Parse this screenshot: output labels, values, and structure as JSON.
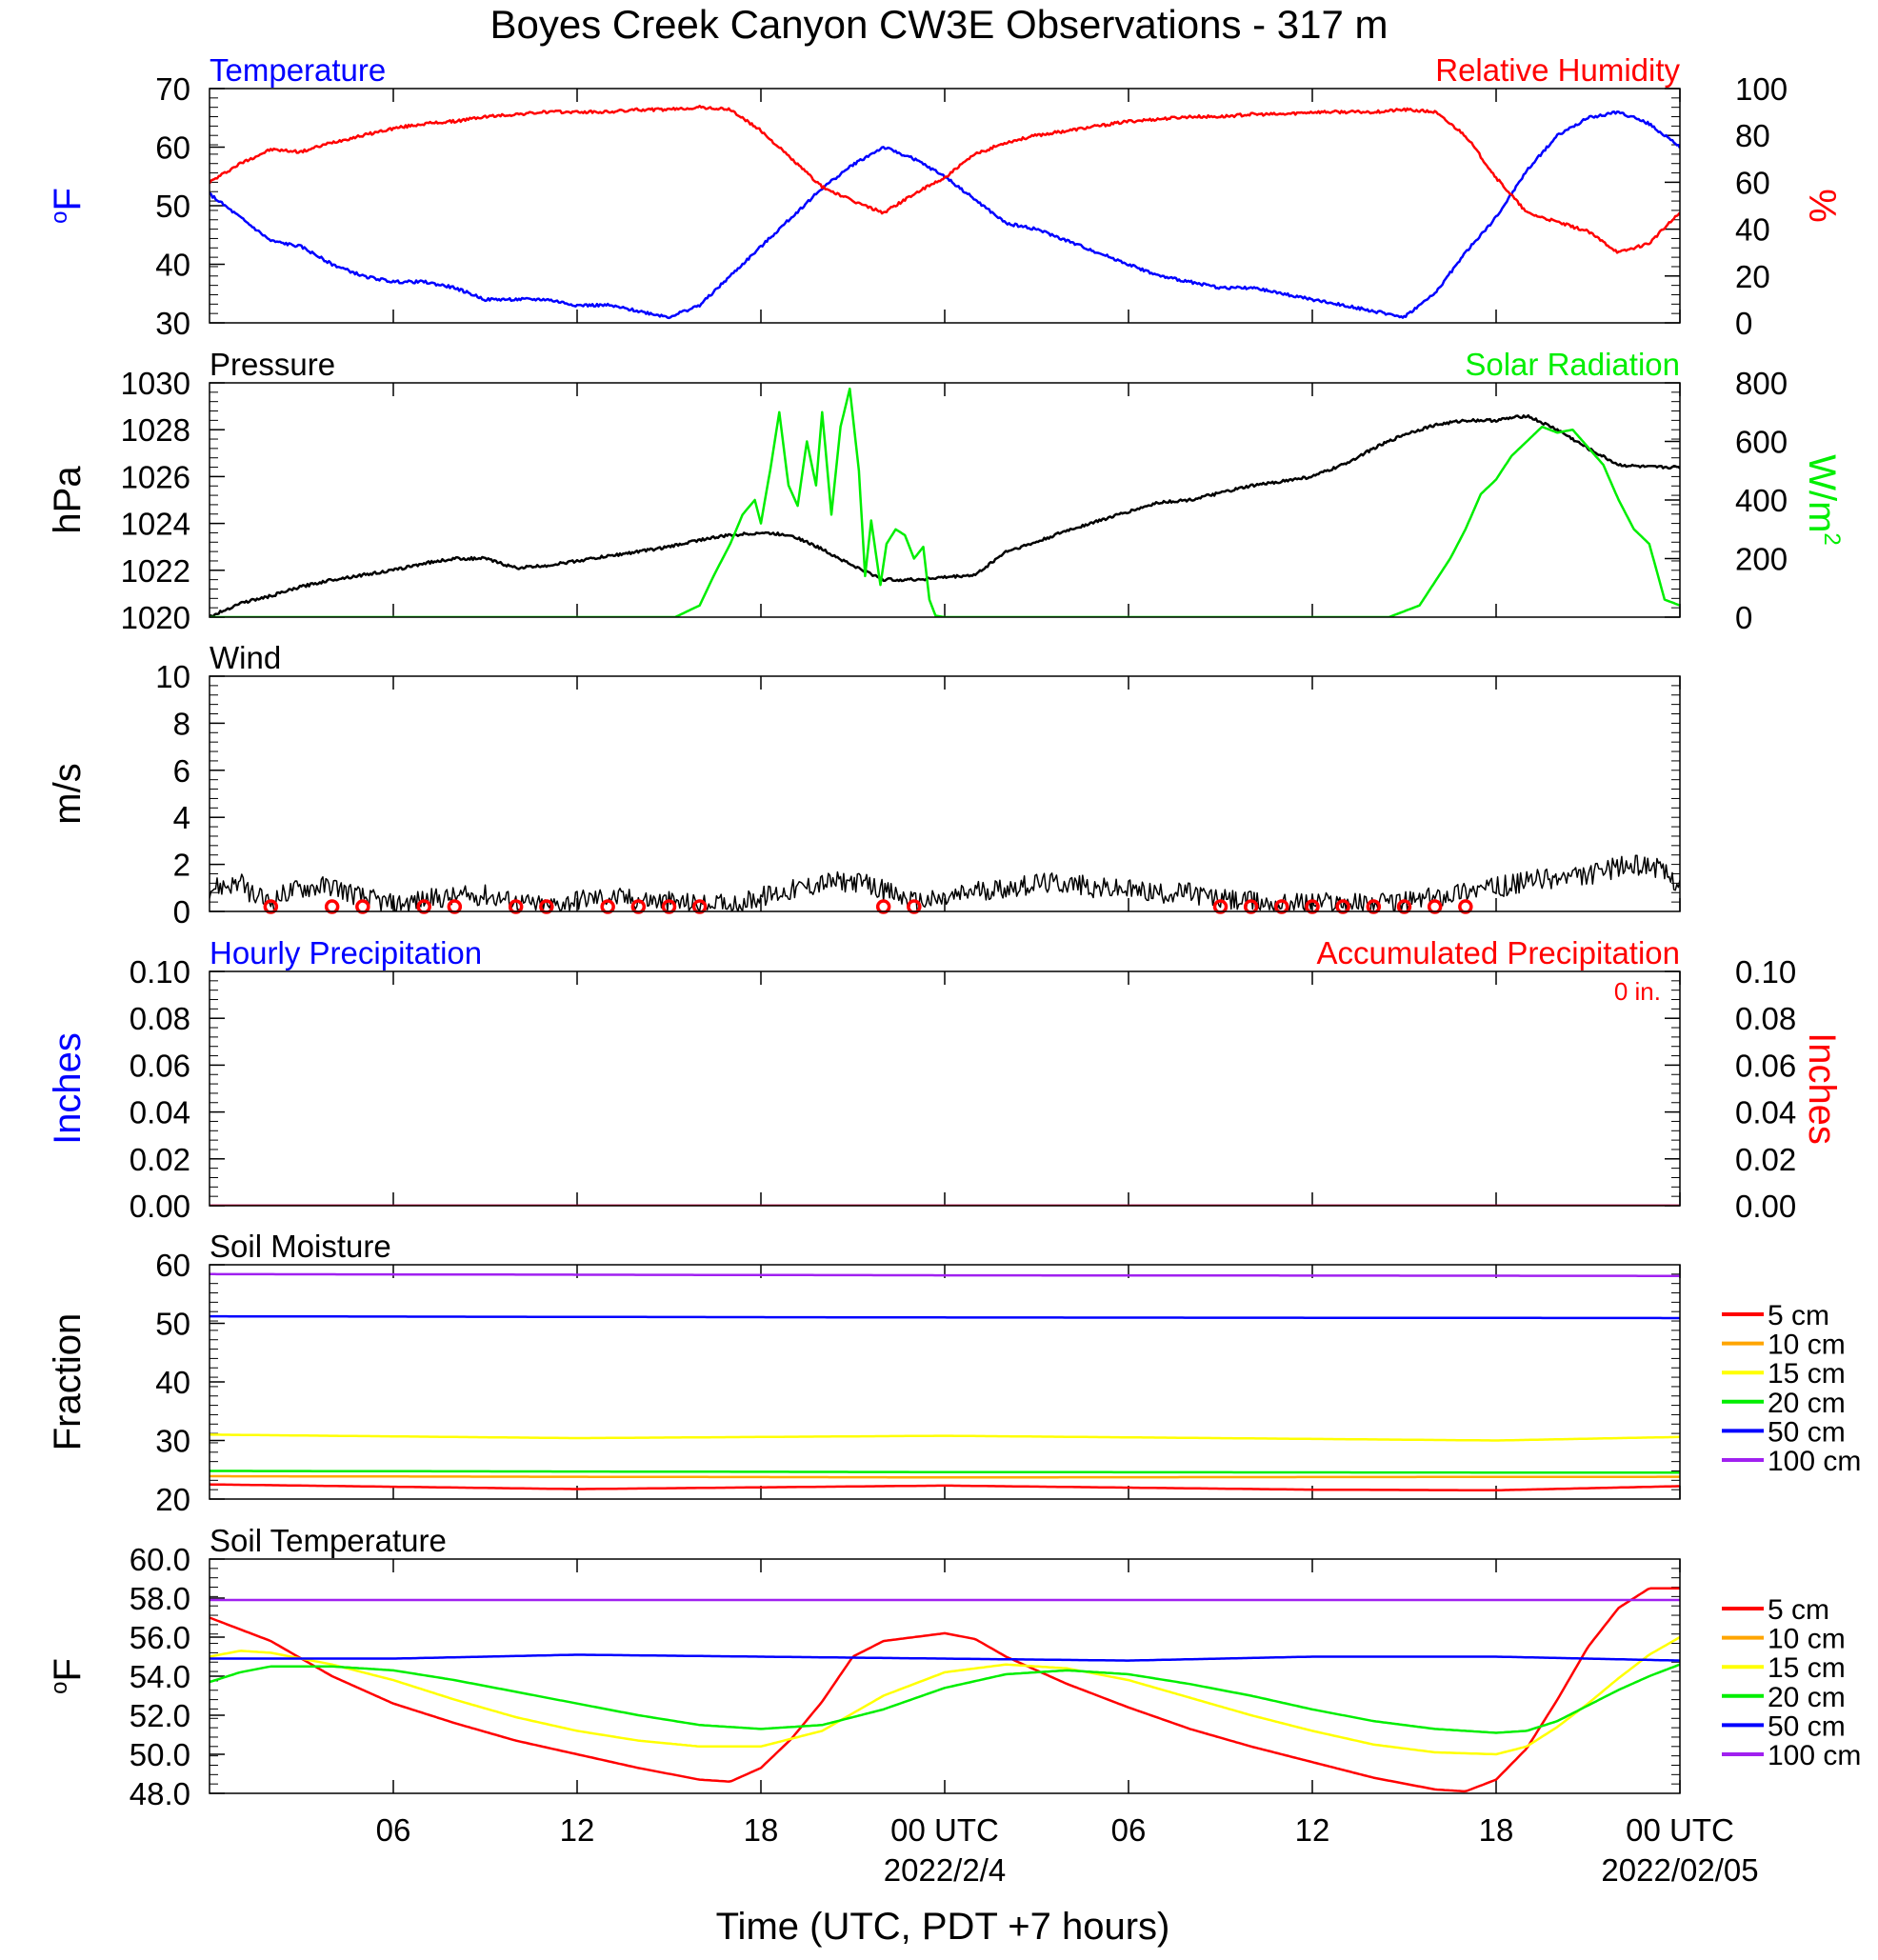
{
  "title": "Boyes Creek Canyon CW3E Observations - 317 m",
  "xaxis": {
    "title": "Time (UTC, PDT +7 hours)",
    "range_hours": [
      0,
      48
    ],
    "ticks": [
      {
        "hour": 6,
        "label": "06",
        "date": ""
      },
      {
        "hour": 12,
        "label": "12",
        "date": ""
      },
      {
        "hour": 18,
        "label": "18",
        "date": ""
      },
      {
        "hour": 24,
        "label": "00 UTC",
        "date": "2022/2/4"
      },
      {
        "hour": 30,
        "label": "06",
        "date": ""
      },
      {
        "hour": 36,
        "label": "12",
        "date": ""
      },
      {
        "hour": 42,
        "label": "18",
        "date": ""
      },
      {
        "hour": 48,
        "label": "00 UTC",
        "date": "2022/02/05"
      }
    ]
  },
  "colors": {
    "blue": "#0000ff",
    "red": "#ff0000",
    "black": "#000000",
    "green": "#00ee00",
    "orange": "#ffa500",
    "yellow": "#ffff00",
    "purple": "#a020f0"
  },
  "chart_data": [
    {
      "id": "temp_rh",
      "type": "line",
      "title_left": "Temperature",
      "title_right": "Relative Humidity",
      "ylabel_left": "°F",
      "ylabel_right": "%",
      "ylim_left": [
        30,
        70
      ],
      "yticks_left": [
        "30",
        "40",
        "50",
        "60",
        "70"
      ],
      "ylim_right": [
        0,
        100
      ],
      "yticks_right": [
        "0",
        "20",
        "40",
        "60",
        "80",
        "100"
      ],
      "series": [
        {
          "name": "Temperature",
          "axis": "left",
          "color": "#0000ff",
          "x": [
            0,
            1,
            2,
            3,
            4,
            5,
            6,
            7,
            8,
            9,
            10,
            11,
            12,
            13,
            14,
            15,
            16,
            17,
            18,
            19,
            20,
            21,
            22,
            23,
            24,
            25,
            26,
            27,
            28,
            29,
            30,
            31,
            32,
            33,
            34,
            35,
            36,
            37,
            38,
            39,
            40,
            41,
            42,
            43,
            44,
            45,
            46,
            47,
            48
          ],
          "y": [
            52,
            48,
            44,
            43,
            40,
            38,
            37,
            37,
            36,
            34,
            34,
            34,
            33,
            33,
            32,
            31,
            33,
            38,
            43,
            48,
            53,
            57,
            60,
            58,
            55,
            51,
            47,
            46,
            44,
            42,
            40,
            38,
            37,
            36,
            36,
            35,
            34,
            33,
            32,
            31,
            35,
            42,
            48,
            56,
            62,
            65,
            66,
            64,
            60
          ]
        },
        {
          "name": "Relative Humidity",
          "axis": "right",
          "color": "#ff0000",
          "x": [
            0,
            1,
            2,
            3,
            4,
            5,
            6,
            7,
            8,
            9,
            10,
            11,
            12,
            13,
            14,
            15,
            16,
            17,
            18,
            19,
            20,
            21,
            22,
            23,
            24,
            25,
            26,
            27,
            28,
            29,
            30,
            31,
            32,
            33,
            34,
            35,
            36,
            37,
            38,
            39,
            40,
            41,
            42,
            43,
            44,
            45,
            46,
            47,
            48
          ],
          "y": [
            60,
            68,
            74,
            73,
            77,
            80,
            83,
            85,
            86,
            88,
            89,
            90,
            90,
            90,
            91,
            91,
            92,
            91,
            82,
            70,
            58,
            52,
            47,
            55,
            62,
            72,
            77,
            80,
            82,
            84,
            86,
            87,
            88,
            88,
            89,
            89,
            90,
            90,
            90,
            91,
            90,
            80,
            62,
            47,
            43,
            39,
            30,
            34,
            47
          ]
        }
      ]
    },
    {
      "id": "pressure_solar",
      "type": "line",
      "title_left": "Pressure",
      "title_right": "Solar Radiation",
      "ylabel_left": "hPa",
      "ylabel_right": "W/m2",
      "ylim_left": [
        1020,
        1030
      ],
      "yticks_left": [
        "1020",
        "1022",
        "1024",
        "1026",
        "1028",
        "1030"
      ],
      "ylim_right": [
        0,
        800
      ],
      "yticks_right": [
        "0",
        "200",
        "400",
        "600",
        "800"
      ],
      "series": [
        {
          "name": "Pressure",
          "axis": "left",
          "color": "#000000",
          "x": [
            0,
            1,
            2,
            3,
            4,
            5,
            6,
            7,
            8,
            9,
            10,
            11,
            12,
            13,
            14,
            15,
            16,
            17,
            18,
            19,
            20,
            21,
            22,
            23,
            24,
            25,
            26,
            27,
            28,
            29,
            30,
            31,
            32,
            33,
            34,
            35,
            36,
            37,
            38,
            39,
            40,
            41,
            42,
            43,
            44,
            45,
            46,
            47,
            48
          ],
          "y": [
            1020.0,
            1020.6,
            1020.9,
            1021.3,
            1021.6,
            1021.8,
            1022.0,
            1022.3,
            1022.5,
            1022.5,
            1022.1,
            1022.2,
            1022.4,
            1022.6,
            1022.8,
            1023.0,
            1023.3,
            1023.5,
            1023.6,
            1023.5,
            1022.9,
            1022.2,
            1021.6,
            1021.6,
            1021.7,
            1021.8,
            1022.8,
            1023.2,
            1023.7,
            1024.1,
            1024.5,
            1024.9,
            1025.0,
            1025.3,
            1025.6,
            1025.8,
            1026.0,
            1026.5,
            1027.2,
            1027.8,
            1028.2,
            1028.4,
            1028.4,
            1028.6,
            1028.0,
            1027.2,
            1026.5,
            1026.4,
            1026.4
          ]
        },
        {
          "name": "Solar Radiation",
          "axis": "right",
          "color": "#00ee00",
          "x": [
            0,
            0.4,
            14,
            15.2,
            16,
            16.5,
            17,
            17.4,
            17.8,
            18,
            18.3,
            18.6,
            18.9,
            19.2,
            19.5,
            19.8,
            20,
            20.3,
            20.6,
            20.9,
            21.2,
            21.4,
            21.6,
            21.9,
            22.1,
            22.4,
            22.7,
            23,
            23.3,
            23.5,
            23.7,
            24,
            25,
            26,
            38.5,
            39.5,
            40.5,
            41,
            41.5,
            42,
            42.5,
            43,
            43.5,
            44,
            44.5,
            45,
            45.5,
            46,
            46.5,
            47,
            47.5,
            48
          ],
          "y": [
            0,
            0,
            0,
            0,
            40,
            150,
            250,
            350,
            400,
            320,
            500,
            700,
            450,
            380,
            600,
            450,
            700,
            350,
            650,
            780,
            500,
            140,
            330,
            110,
            250,
            300,
            280,
            200,
            240,
            60,
            5,
            0,
            0,
            0,
            0,
            40,
            200,
            300,
            420,
            470,
            550,
            600,
            650,
            630,
            640,
            580,
            520,
            400,
            300,
            250,
            60,
            40
          ]
        }
      ]
    },
    {
      "id": "wind",
      "type": "line",
      "title_left": "Wind",
      "ylabel_left": "m/s",
      "ylim_left": [
        0,
        10
      ],
      "yticks_left": [
        "0",
        "2",
        "4",
        "6",
        "8",
        "10"
      ],
      "series": [
        {
          "name": "Wind",
          "axis": "left",
          "color": "#000000",
          "x": [
            0,
            1,
            1.5,
            2,
            2.5,
            3,
            4,
            5,
            6,
            7,
            8,
            9,
            10,
            11,
            12,
            13,
            14,
            15,
            16,
            17,
            18,
            19,
            20,
            21,
            22,
            23,
            24,
            25,
            26,
            27,
            28,
            29,
            30,
            31,
            32,
            33,
            34,
            35,
            36,
            37,
            38,
            39,
            40,
            41,
            42,
            43,
            44,
            45,
            46,
            47,
            48
          ],
          "y": [
            1.0,
            1.2,
            0.6,
            0.4,
            0.8,
            1.0,
            1.1,
            0.6,
            0.3,
            0.5,
            0.6,
            0.7,
            0.4,
            0.2,
            0.5,
            0.6,
            0.5,
            0.4,
            0.3,
            0.3,
            0.6,
            0.9,
            1.2,
            1.3,
            0.9,
            0.4,
            0.5,
            0.9,
            1.0,
            1.2,
            1.2,
            1.0,
            0.9,
            0.8,
            0.8,
            0.5,
            0.4,
            0.3,
            0.4,
            0.4,
            0.3,
            0.4,
            0.6,
            0.9,
            1.0,
            1.3,
            1.4,
            1.5,
            1.9,
            2.0,
            1.2
          ]
        }
      ],
      "calm_hours": [
        2,
        4,
        5,
        7,
        8,
        10,
        11,
        13,
        14,
        15,
        16,
        22,
        23,
        33,
        34,
        35,
        36,
        37,
        38,
        39,
        40,
        41
      ]
    },
    {
      "id": "precip",
      "type": "line",
      "title_left": "Hourly Precipitation",
      "title_right": "Accumulated Precipitation",
      "annotation": "0 in.",
      "ylabel_left": "Inches",
      "ylabel_right": "Inches",
      "ylim_left": [
        0,
        0.1
      ],
      "yticks_left": [
        "0.00",
        "0.02",
        "0.04",
        "0.06",
        "0.08",
        "0.10"
      ],
      "ylim_right": [
        0,
        0.1
      ],
      "yticks_right": [
        "0.00",
        "0.02",
        "0.04",
        "0.06",
        "0.08",
        "0.10"
      ],
      "series": [
        {
          "name": "Hourly Precipitation",
          "axis": "left",
          "color": "#0000ff",
          "x": [
            0,
            48
          ],
          "y": [
            0,
            0
          ]
        },
        {
          "name": "Accumulated Precipitation",
          "axis": "left",
          "color": "#ff0000",
          "x": [
            0,
            48
          ],
          "y": [
            0,
            0
          ]
        }
      ]
    },
    {
      "id": "soil_moisture",
      "type": "line",
      "title_left": "Soil Moisture",
      "ylabel_left": "Fraction",
      "ylim_left": [
        20,
        60
      ],
      "yticks_left": [
        "20",
        "30",
        "40",
        "50",
        "60"
      ],
      "legend": "right",
      "series": [
        {
          "name": "5 cm",
          "axis": "left",
          "color": "#ff0000",
          "x": [
            0,
            12,
            24,
            36,
            42,
            48
          ],
          "y": [
            22.5,
            21.7,
            22.3,
            21.6,
            21.5,
            22.2
          ]
        },
        {
          "name": "10 cm",
          "axis": "left",
          "color": "#ffa500",
          "x": [
            0,
            24,
            48
          ],
          "y": [
            23.9,
            23.7,
            23.8
          ]
        },
        {
          "name": "15 cm",
          "axis": "left",
          "color": "#ffff00",
          "x": [
            0,
            12,
            24,
            42,
            48
          ],
          "y": [
            31.0,
            30.4,
            30.8,
            30.0,
            30.6
          ]
        },
        {
          "name": "20 cm",
          "axis": "left",
          "color": "#00ee00",
          "x": [
            0,
            24,
            48
          ],
          "y": [
            24.8,
            24.6,
            24.5
          ]
        },
        {
          "name": "50 cm",
          "axis": "left",
          "color": "#0000ff",
          "x": [
            0,
            24,
            48
          ],
          "y": [
            51.2,
            51.0,
            50.9
          ]
        },
        {
          "name": "100 cm",
          "axis": "left",
          "color": "#a020f0",
          "x": [
            0,
            24,
            48
          ],
          "y": [
            58.4,
            58.2,
            58.1
          ]
        }
      ]
    },
    {
      "id": "soil_temp",
      "type": "line",
      "title_left": "Soil Temperature",
      "ylabel_left": "°F",
      "ylim_left": [
        48,
        60
      ],
      "yticks_left": [
        "48.0",
        "50.0",
        "52.0",
        "54.0",
        "56.0",
        "58.0",
        "60.0"
      ],
      "legend": "right",
      "series": [
        {
          "name": "5 cm",
          "axis": "left",
          "color": "#ff0000",
          "x": [
            0,
            2,
            4,
            6,
            8,
            10,
            12,
            14,
            16,
            17,
            18,
            19,
            20,
            21,
            22,
            23,
            24,
            25,
            26,
            28,
            30,
            32,
            34,
            36,
            38,
            40,
            41,
            42,
            43,
            44,
            45,
            46,
            47,
            48
          ],
          "y": [
            57.0,
            55.8,
            54.0,
            52.6,
            51.6,
            50.7,
            50.0,
            49.3,
            48.7,
            48.6,
            49.3,
            50.8,
            52.7,
            55.0,
            55.8,
            56.0,
            56.2,
            55.9,
            55.0,
            53.6,
            52.4,
            51.3,
            50.4,
            49.6,
            48.8,
            48.2,
            48.1,
            48.7,
            50.3,
            52.8,
            55.5,
            57.5,
            58.5,
            58.5
          ]
        },
        {
          "name": "10 cm",
          "axis": "left",
          "color": "#ffa500",
          "x": [],
          "y": []
        },
        {
          "name": "15 cm",
          "axis": "left",
          "color": "#ffff00",
          "x": [
            0,
            1,
            2,
            4,
            6,
            8,
            10,
            12,
            14,
            16,
            18,
            20,
            22,
            24,
            26,
            28,
            30,
            32,
            34,
            36,
            38,
            40,
            42,
            43,
            44,
            45,
            46,
            47,
            48
          ],
          "y": [
            55.0,
            55.3,
            55.2,
            54.6,
            53.8,
            52.8,
            51.9,
            51.2,
            50.7,
            50.4,
            50.4,
            51.2,
            53.0,
            54.2,
            54.6,
            54.4,
            53.8,
            52.9,
            52.0,
            51.2,
            50.5,
            50.1,
            50.0,
            50.4,
            51.4,
            52.6,
            53.9,
            55.1,
            56.0
          ]
        },
        {
          "name": "20 cm",
          "axis": "left",
          "color": "#00ee00",
          "x": [
            0,
            1,
            2,
            4,
            6,
            8,
            10,
            12,
            14,
            16,
            18,
            20,
            22,
            24,
            26,
            28,
            30,
            32,
            34,
            36,
            38,
            40,
            42,
            43,
            44,
            45,
            46,
            47,
            48
          ],
          "y": [
            53.7,
            54.2,
            54.5,
            54.5,
            54.3,
            53.8,
            53.2,
            52.6,
            52.0,
            51.5,
            51.3,
            51.5,
            52.3,
            53.4,
            54.1,
            54.3,
            54.1,
            53.6,
            53.0,
            52.3,
            51.7,
            51.3,
            51.1,
            51.2,
            51.7,
            52.5,
            53.3,
            54.0,
            54.6
          ]
        },
        {
          "name": "50 cm",
          "axis": "left",
          "color": "#0000ff",
          "x": [
            0,
            6,
            12,
            18,
            24,
            30,
            36,
            42,
            48
          ],
          "y": [
            54.9,
            54.9,
            55.1,
            55.0,
            54.9,
            54.8,
            55.0,
            55.0,
            54.8
          ]
        },
        {
          "name": "100 cm",
          "axis": "left",
          "color": "#a020f0",
          "x": [
            0,
            24,
            48
          ],
          "y": [
            57.9,
            57.9,
            57.9
          ]
        }
      ]
    }
  ]
}
